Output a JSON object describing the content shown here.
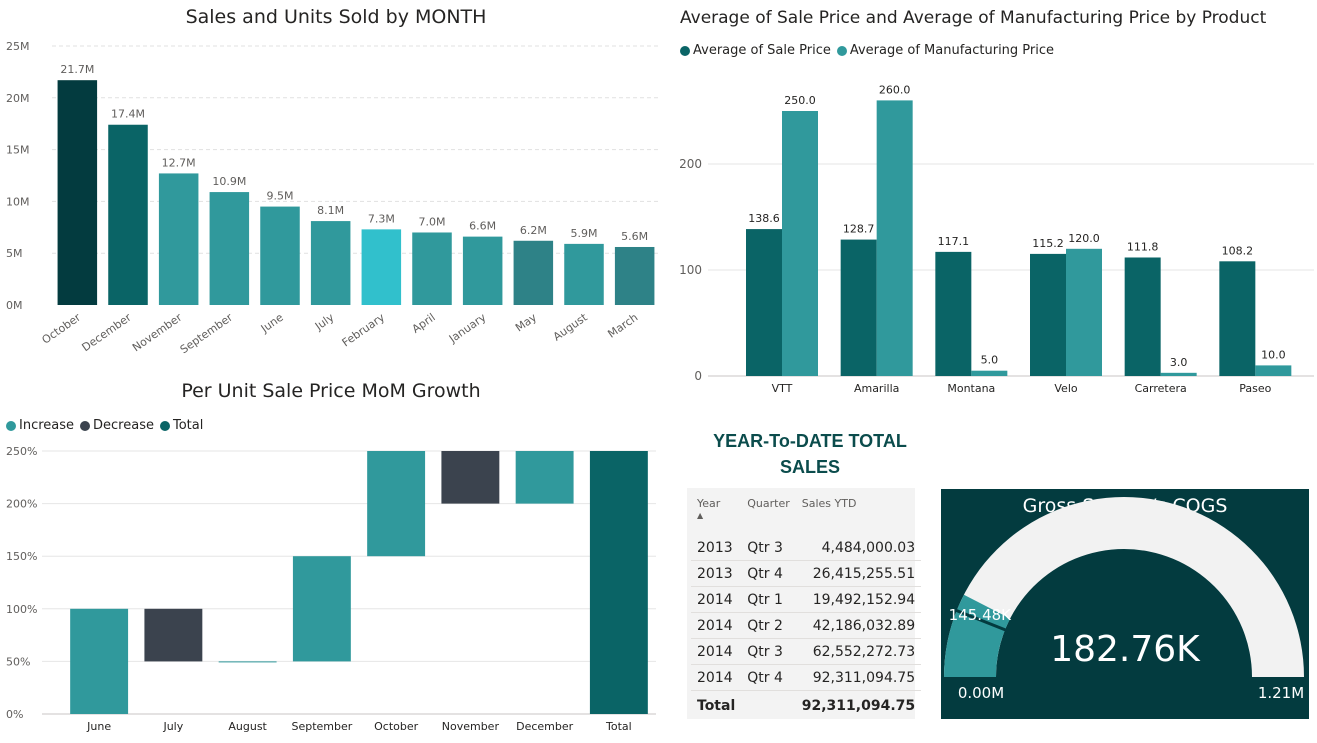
{
  "chart_data": [
    {
      "type": "bar",
      "title": "Sales and Units Sold by MONTH",
      "categories": [
        "October",
        "December",
        "November",
        "September",
        "June",
        "July",
        "February",
        "April",
        "January",
        "May",
        "August",
        "March"
      ],
      "values": [
        21.7,
        17.4,
        12.7,
        10.9,
        9.5,
        8.1,
        7.3,
        7.0,
        6.6,
        6.2,
        5.9,
        5.6
      ],
      "value_labels": [
        "21.7M",
        "17.4M",
        "12.7M",
        "10.9M",
        "9.5M",
        "8.1M",
        "7.3M",
        "7.0M",
        "6.6M",
        "6.2M",
        "5.9M",
        "5.6M"
      ],
      "colors": [
        "#033b3f",
        "#0a6466",
        "#30999c",
        "#30999c",
        "#30999c",
        "#30999c",
        "#31c0cc",
        "#30999c",
        "#30999c",
        "#2e8287",
        "#30999c",
        "#2e8287"
      ],
      "yticks": [
        "0M",
        "5M",
        "10M",
        "15M",
        "20M",
        "25M"
      ],
      "ylim": [
        0,
        25
      ],
      "xlabel": "",
      "ylabel": "",
      "grid": true
    },
    {
      "type": "bar",
      "title": "Average of Sale Price and Average of Manufacturing Price by Product",
      "categories": [
        "VTT",
        "Amarilla",
        "Montana",
        "Velo",
        "Carretera",
        "Paseo"
      ],
      "series": [
        {
          "name": "Average of Sale Price",
          "values": [
            138.6,
            128.7,
            117.1,
            115.2,
            111.8,
            108.2
          ],
          "labels": [
            "138.6",
            "128.7",
            "117.1",
            "115.2",
            "111.8",
            "108.2"
          ],
          "color": "#0a6466"
        },
        {
          "name": "Average of Manufacturing Price",
          "values": [
            250.0,
            260.0,
            5.0,
            120.0,
            3.0,
            10.0
          ],
          "labels": [
            "250.0",
            "260.0",
            "5.0",
            "120.0",
            "3.0",
            "10.0"
          ],
          "color": "#30999c"
        }
      ],
      "yticks": [
        "0",
        "100",
        "200"
      ],
      "ylim": [
        0,
        300
      ],
      "grid": true
    },
    {
      "type": "waterfall",
      "title": "Per Unit Sale Price MoM Growth",
      "legend": [
        {
          "name": "Increase",
          "color": "#30999c"
        },
        {
          "name": "Decrease",
          "color": "#3b434e"
        },
        {
          "name": "Total",
          "color": "#0a6466"
        }
      ],
      "categories": [
        "June",
        "July",
        "August",
        "September",
        "October",
        "November",
        "December",
        "Total"
      ],
      "bars": [
        {
          "start": 0,
          "end": 100,
          "kind": "Increase"
        },
        {
          "start": 100,
          "end": 50,
          "kind": "Decrease"
        },
        {
          "start": 50,
          "end": 50,
          "kind": "Increase"
        },
        {
          "start": 50,
          "end": 150,
          "kind": "Increase"
        },
        {
          "start": 150,
          "end": 250,
          "kind": "Increase"
        },
        {
          "start": 250,
          "end": 200,
          "kind": "Decrease"
        },
        {
          "start": 200,
          "end": 250,
          "kind": "Increase"
        },
        {
          "start": 0,
          "end": 250,
          "kind": "Total"
        }
      ],
      "yticks": [
        "0%",
        "50%",
        "100%",
        "150%",
        "200%",
        "250%"
      ],
      "ylim": [
        0,
        250
      ],
      "grid": true
    }
  ],
  "ytd": {
    "title": "YEAR-To-DATE TOTAL SALES",
    "headers": {
      "year": "Year",
      "quarter": "Quarter",
      "sales": "Sales YTD"
    },
    "rows": [
      {
        "year": "2013",
        "quarter": "Qtr 3",
        "sales": "4,484,000.03"
      },
      {
        "year": "2013",
        "quarter": "Qtr 4",
        "sales": "26,415,255.51"
      },
      {
        "year": "2014",
        "quarter": "Qtr 1",
        "sales": "19,492,152.94"
      },
      {
        "year": "2014",
        "quarter": "Qtr 2",
        "sales": "42,186,032.89"
      },
      {
        "year": "2014",
        "quarter": "Qtr 3",
        "sales": "62,552,272.73"
      },
      {
        "year": "2014",
        "quarter": "Qtr 4",
        "sales": "92,311,094.75"
      }
    ],
    "total_label": "Total",
    "total_value": "92,311,094.75"
  },
  "gauge": {
    "title": "Gross Sales v/s COGS",
    "value": 182.76,
    "value_label": "182.76K",
    "min": 0,
    "min_label": "0.00M",
    "max": 1210,
    "max_label": "1.21M",
    "target": 145.48,
    "target_label": "145.48K",
    "fill_color": "#30999c",
    "track_color": "#f2f2f2",
    "background": "#033b3f"
  }
}
